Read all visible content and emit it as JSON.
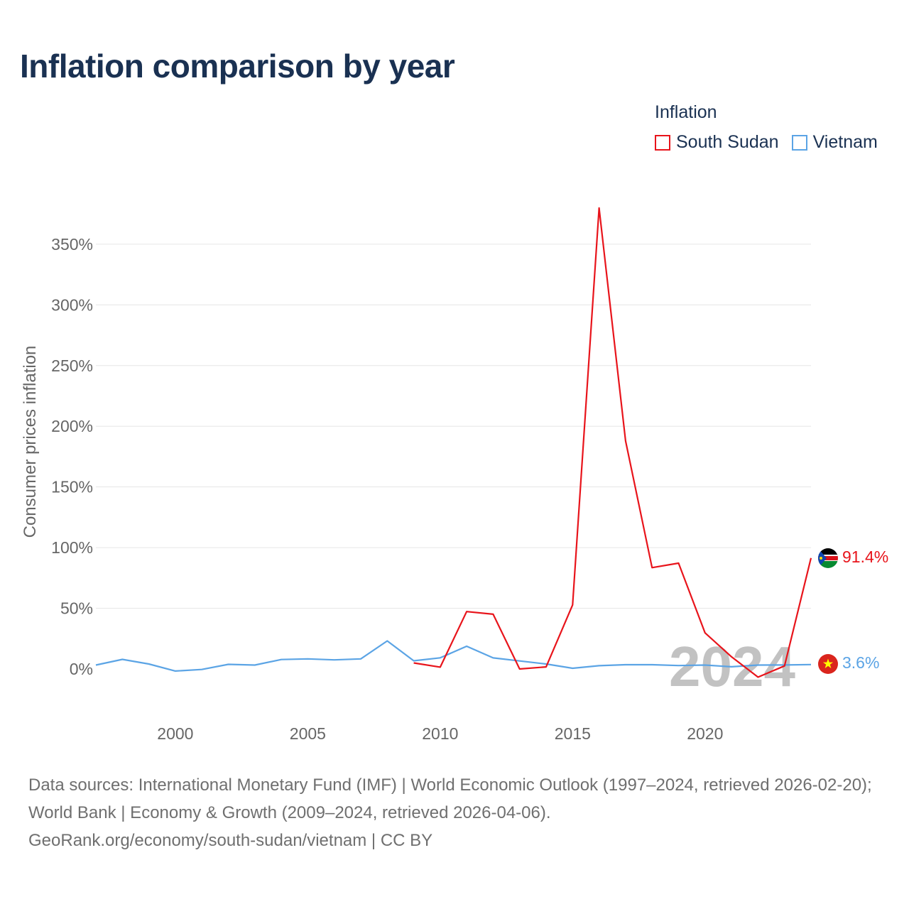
{
  "page": {
    "title": "Inflation comparison by year",
    "footer_line1": "Data sources: International Monetary Fund (IMF) | World Economic Outlook (1997–2024, retrieved 2026-02-20); World Bank | Economy & Growth (2009–2024, retrieved 2026-04-06).",
    "footer_line2": "GeoRank.org/economy/south-sudan/vietnam | CC BY"
  },
  "chart_data": {
    "type": "line",
    "title": "Inflation comparison by year",
    "legend_title": "Inflation",
    "legend_position": "top-right",
    "ylabel": "Consumer prices inflation",
    "xlabel": "",
    "xlim": [
      1997,
      2024
    ],
    "ylim": [
      -25,
      380
    ],
    "x_ticks": [
      2000,
      2005,
      2010,
      2015,
      2020
    ],
    "y_ticks": [
      0,
      50,
      100,
      150,
      200,
      250,
      300,
      350
    ],
    "y_tick_labels": [
      "0%",
      "50%",
      "100%",
      "150%",
      "200%",
      "250%",
      "300%",
      "350%"
    ],
    "grid": true,
    "watermark_year": "2024",
    "colors": {
      "South Sudan": "#e8141b",
      "Vietnam": "#5ba4e5"
    },
    "series": [
      {
        "name": "South Sudan",
        "end_label": "91.4%",
        "points": [
          [
            2009,
            5.0
          ],
          [
            2010,
            1.5
          ],
          [
            2011,
            47.3
          ],
          [
            2012,
            45.1
          ],
          [
            2013,
            0.0
          ],
          [
            2014,
            1.7
          ],
          [
            2015,
            52.8
          ],
          [
            2016,
            379.8
          ],
          [
            2017,
            187.9
          ],
          [
            2018,
            83.5
          ],
          [
            2019,
            87.2
          ],
          [
            2020,
            29.7
          ],
          [
            2021,
            10.0
          ],
          [
            2022,
            -6.7
          ],
          [
            2023,
            2.5
          ],
          [
            2024,
            91.4
          ]
        ]
      },
      {
        "name": "Vietnam",
        "end_label": "3.6%",
        "points": [
          [
            1997,
            3.2
          ],
          [
            1998,
            7.9
          ],
          [
            1999,
            4.1
          ],
          [
            2000,
            -1.7
          ],
          [
            2001,
            -0.4
          ],
          [
            2002,
            3.8
          ],
          [
            2003,
            3.2
          ],
          [
            2004,
            7.8
          ],
          [
            2005,
            8.3
          ],
          [
            2006,
            7.5
          ],
          [
            2007,
            8.3
          ],
          [
            2008,
            23.1
          ],
          [
            2009,
            6.7
          ],
          [
            2010,
            9.2
          ],
          [
            2011,
            18.7
          ],
          [
            2012,
            9.1
          ],
          [
            2013,
            6.6
          ],
          [
            2014,
            4.1
          ],
          [
            2015,
            0.6
          ],
          [
            2016,
            2.7
          ],
          [
            2017,
            3.5
          ],
          [
            2018,
            3.5
          ],
          [
            2019,
            2.8
          ],
          [
            2020,
            3.2
          ],
          [
            2021,
            1.8
          ],
          [
            2022,
            3.2
          ],
          [
            2023,
            3.3
          ],
          [
            2024,
            3.6
          ]
        ]
      }
    ]
  }
}
